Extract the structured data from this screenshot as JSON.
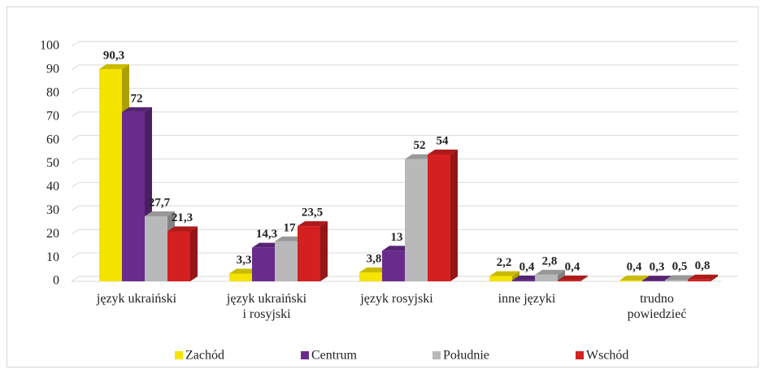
{
  "chart_data": {
    "type": "bar3d",
    "categories": [
      "język ukraiński",
      "język ukraiński\ni rosyjski",
      "język rosyjski",
      "inne języki",
      "trudno\npowiedzieć"
    ],
    "series": [
      {
        "name": "Zachód",
        "color": "#f5e400",
        "values": [
          90.3,
          3.3,
          3.8,
          2.2,
          0.4
        ],
        "value_labels": [
          "90,3",
          "3,3",
          "3,8",
          "2,2",
          "0,4"
        ]
      },
      {
        "name": "Centrum",
        "color": "#6a2c8c",
        "values": [
          72,
          14.3,
          13,
          0.4,
          0.3
        ],
        "value_labels": [
          "72",
          "14,3",
          "13",
          "0,4",
          "0,3"
        ]
      },
      {
        "name": "Południe",
        "color": "#b9b9bb",
        "values": [
          27.7,
          17,
          52,
          2.8,
          0.5
        ],
        "value_labels": [
          "27,7",
          "17",
          "52",
          "2,8",
          "0,5"
        ]
      },
      {
        "name": "Wschód",
        "color": "#d42020",
        "values": [
          21.3,
          23.5,
          54,
          0.4,
          0.8
        ],
        "value_labels": [
          "21,3",
          "23,5",
          "54",
          "0,4",
          "0,8"
        ]
      }
    ],
    "ylim": [
      0,
      100
    ],
    "yticks": [
      0,
      10,
      20,
      30,
      40,
      50,
      60,
      70,
      80,
      90,
      100
    ],
    "grid": true,
    "legend": "bottom"
  }
}
